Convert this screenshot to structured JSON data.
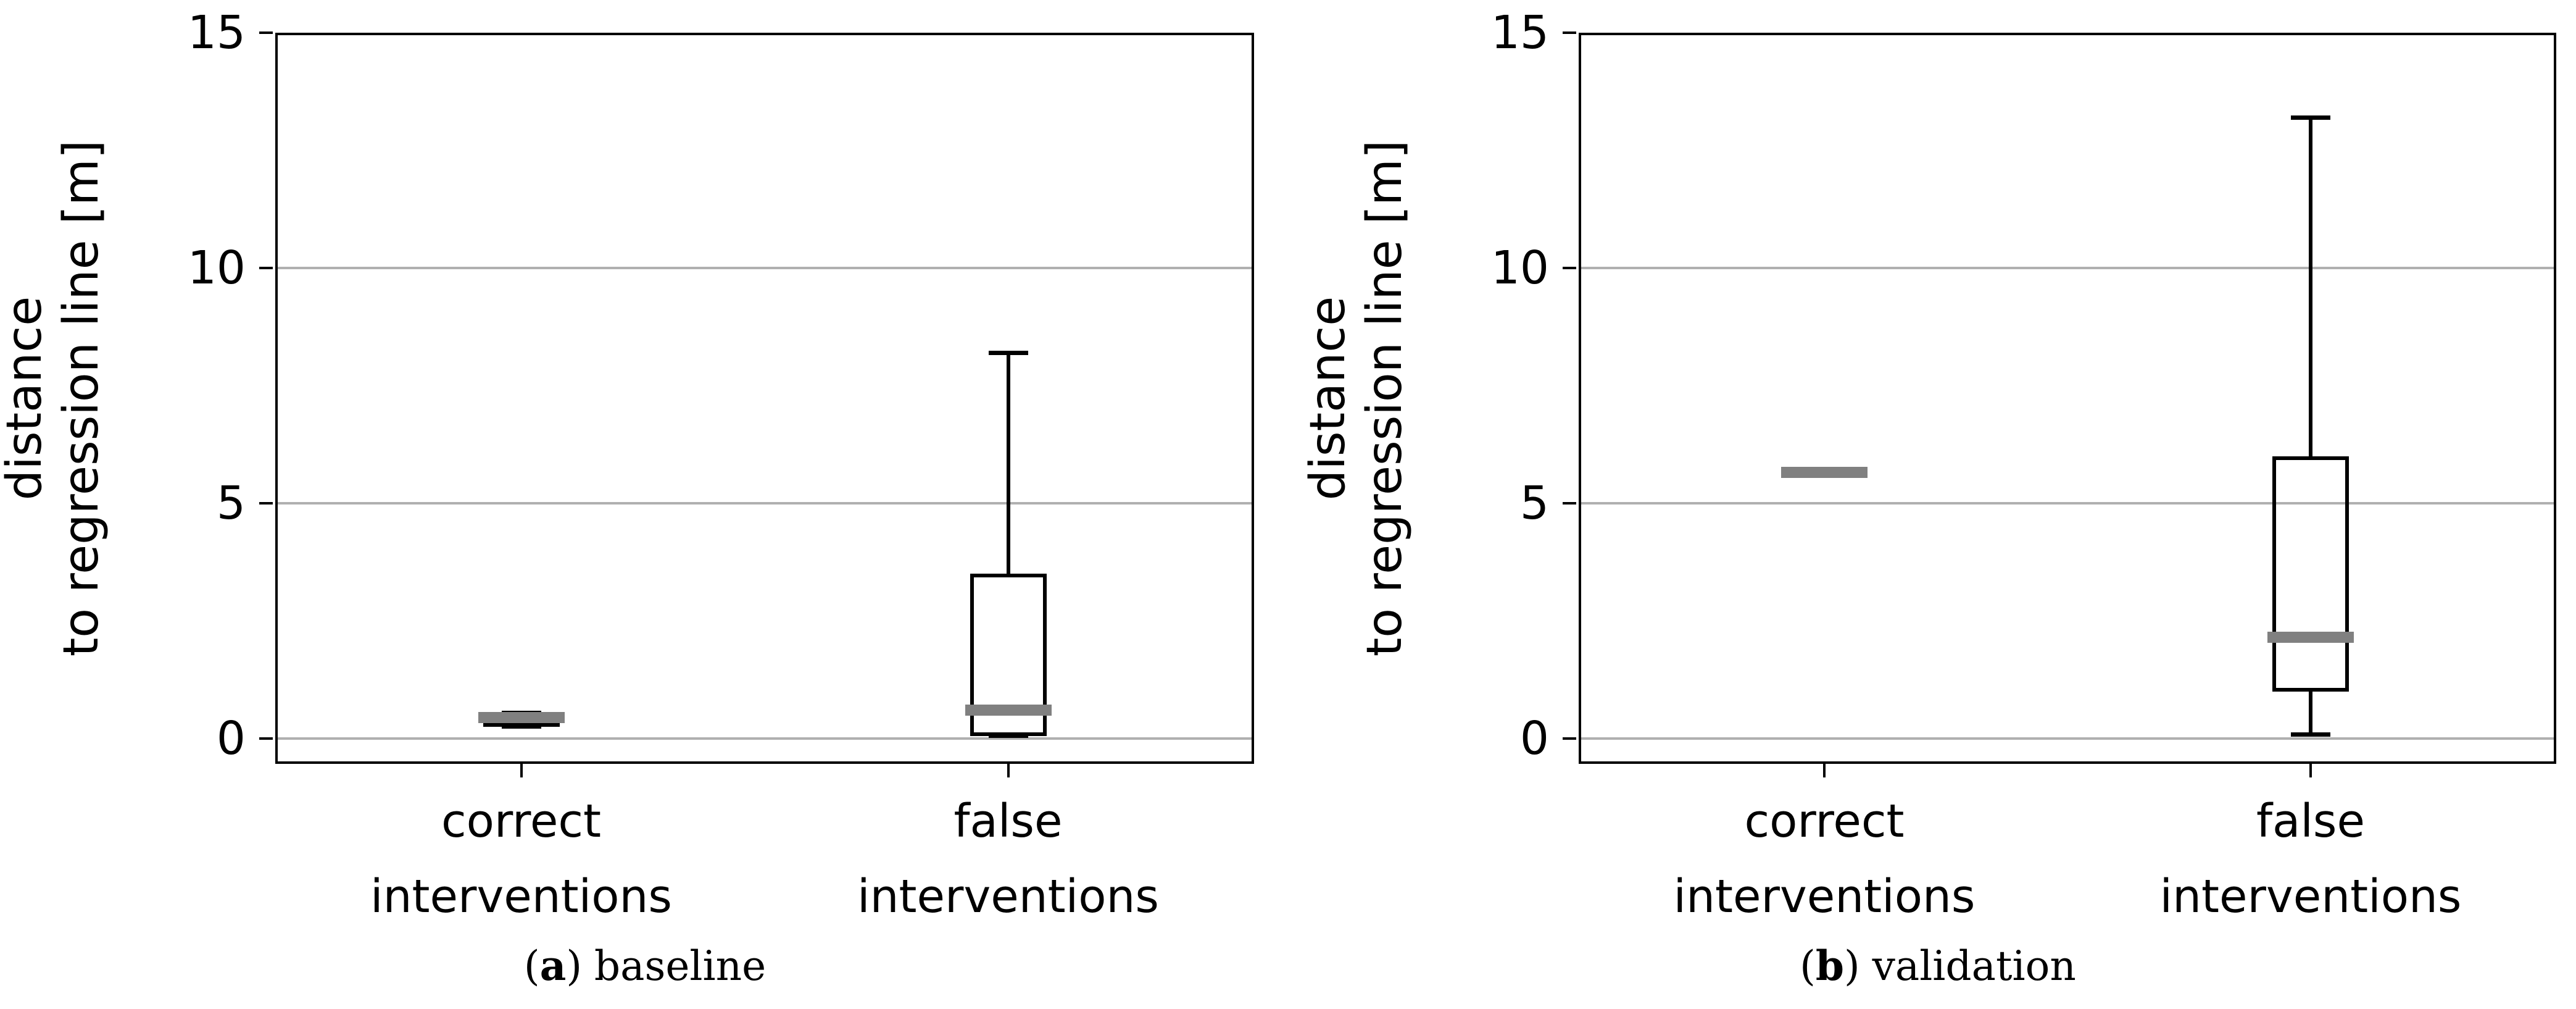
{
  "chart_data": [
    {
      "type": "boxplot",
      "panel": "a",
      "caption": {
        "open": "(",
        "letter": "a",
        "close": ")",
        "text": "baseline"
      },
      "ylabel_line1": "distance",
      "ylabel_line2": "to regression line [m]",
      "ylim": [
        -0.54,
        15
      ],
      "yticks": [
        0,
        5,
        10,
        15
      ],
      "grid": true,
      "legend": "none",
      "categories": [
        [
          "correct",
          "interventions"
        ],
        [
          "false",
          "interventions"
        ]
      ],
      "boxes": [
        {
          "category": "correct interventions",
          "whisker_low": 0.25,
          "q1": 0.25,
          "median": 0.45,
          "q3": 0.55,
          "whisker_high": 0.55
        },
        {
          "category": "false interventions",
          "whisker_low": 0.05,
          "q1": 0.05,
          "median": 0.6,
          "q3": 3.5,
          "whisker_high": 8.2
        }
      ],
      "colors": {
        "median": "#808080",
        "line": "#000000",
        "grid": "#b0b0b0"
      }
    },
    {
      "type": "boxplot",
      "panel": "b",
      "caption": {
        "open": "(",
        "letter": "b",
        "close": ")",
        "text": "validation"
      },
      "ylabel_line1": "distance",
      "ylabel_line2": "to regression line [m]",
      "ylim": [
        -0.54,
        15
      ],
      "yticks": [
        0,
        5,
        10,
        15
      ],
      "grid": true,
      "legend": "none",
      "categories": [
        [
          "correct",
          "interventions"
        ],
        [
          "false",
          "interventions"
        ]
      ],
      "boxes": [
        {
          "category": "correct interventions",
          "whisker_low": 5.65,
          "q1": 5.65,
          "median": 5.65,
          "q3": 5.65,
          "whisker_high": 5.65
        },
        {
          "category": "false interventions",
          "whisker_low": 0.08,
          "q1": 1.0,
          "median": 2.15,
          "q3": 6.0,
          "whisker_high": 13.2
        }
      ],
      "colors": {
        "median": "#808080",
        "line": "#000000",
        "grid": "#b0b0b0"
      }
    }
  ]
}
